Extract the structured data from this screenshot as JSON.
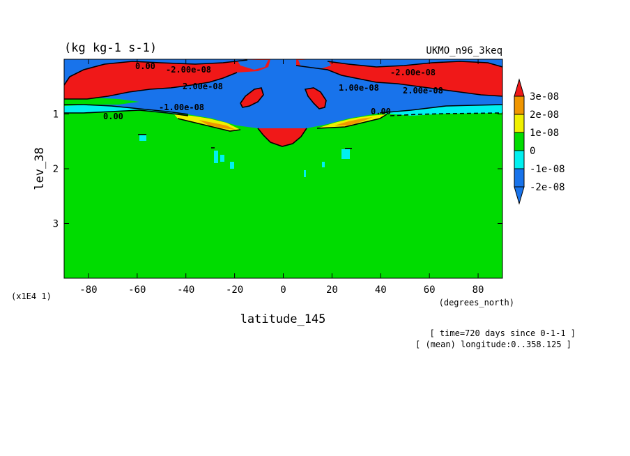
{
  "header": {
    "units": "(kg kg-1 s-1)",
    "dataset": "UKMO_n96_3keq"
  },
  "footer": {
    "time": "[ time=720 days since 0-1-1 ]",
    "longitude": "[ (mean) longitude:0..358.125 ]"
  },
  "chart_data": {
    "type": "heatmap",
    "title": "(kg kg-1 s-1)",
    "subtitle": "UKMO_n96_3keq",
    "xlabel": "latitude_145",
    "xunits": "(degrees_north)",
    "ylabel": "lev_38",
    "yscale_note": "(x1E4 1)",
    "xlim": [
      -90,
      90
    ],
    "ylim": [
      4,
      0
    ],
    "y_inverted": true,
    "x_ticks": [
      -80,
      -60,
      -40,
      -20,
      0,
      20,
      40,
      60,
      80
    ],
    "y_ticks": [
      1,
      2,
      3
    ],
    "color_levels": [
      {
        "label": "-2e-08",
        "color": "#1873eb"
      },
      {
        "label": "-1e-08",
        "color": "#00f0f0"
      },
      {
        "label": "0",
        "color": "#00dc00"
      },
      {
        "label": "1e-08",
        "color": "#f0f000"
      },
      {
        "label": "2e-08",
        "color": "#f09600"
      },
      {
        "label": "3e-08",
        "color": "#f01818"
      }
    ],
    "contour_labels": [
      "0.00",
      "-2.00e-08",
      "-1.00e-08",
      "2.00e-08",
      "1.00e-08"
    ],
    "grid": false,
    "legend": "right"
  }
}
